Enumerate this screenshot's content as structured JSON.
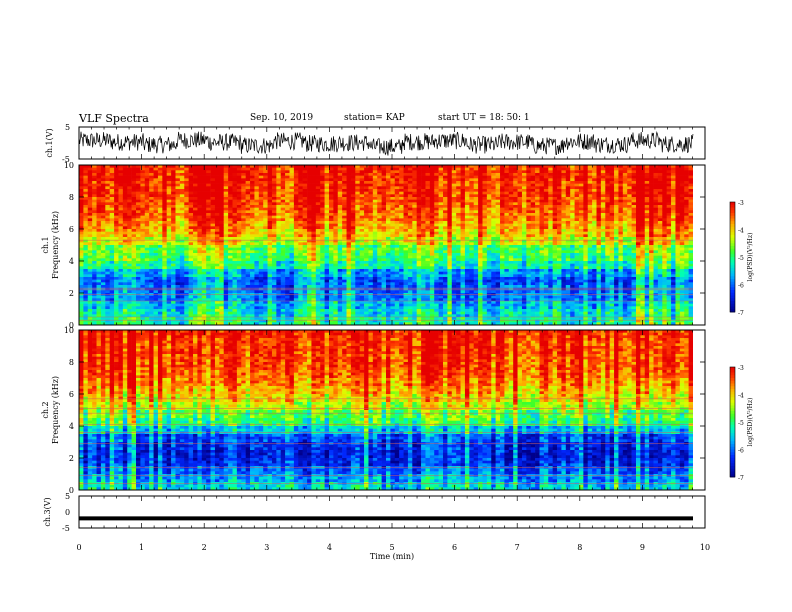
{
  "header": {
    "title": "VLF Spectra",
    "date": "Sep. 10, 2019",
    "station": "station= KAP",
    "start": "start UT =   18: 50: 1"
  },
  "chart_data": [
    {
      "type": "line",
      "panel": "ch1-waveform",
      "ylabel": "ch.1(V)",
      "ylim": [
        -5,
        5
      ],
      "yticks": [
        "5",
        "-5"
      ],
      "xlim": [
        0,
        10
      ],
      "series": [
        {
          "values": [
            0.8,
            0.3,
            -0.5,
            0.9,
            0.2,
            -0.8,
            0.6,
            -0.2,
            0.1,
            -1.2,
            0.4,
            0.7,
            -0.6,
            0.3,
            -0.9,
            0.5,
            -0.4,
            0.8,
            -0.3,
            0.2
          ]
        }
      ]
    },
    {
      "type": "heatmap",
      "panel": "ch1-spectrogram",
      "ylabel": "ch.1 Frequency (kHz)",
      "ylabel_line1": "ch.1",
      "ylabel_line2": "Frequency  (kHz)",
      "ylim": [
        0,
        10
      ],
      "yticks": [
        "0",
        "2",
        "4",
        "6",
        "8",
        "10"
      ],
      "xlim": [
        0,
        9.85
      ],
      "band_levels": [
        -5.2,
        -5.4,
        -5.6,
        -5.9,
        -6.0,
        -6.1,
        -5.8,
        -5.2,
        -4.9,
        -4.8,
        -4.3,
        -4.0,
        -3.8,
        -3.6,
        -3.5,
        -3.4,
        -3.3,
        -3.3,
        -3.2,
        -3.2
      ],
      "band_frequencies_khz": [
        0.25,
        0.75,
        1.25,
        1.75,
        2.25,
        2.75,
        3.25,
        3.75,
        4.25,
        4.75,
        5.25,
        5.75,
        6.25,
        6.75,
        7.25,
        7.75,
        8.25,
        8.75,
        9.25,
        9.75
      ],
      "colorbar": {
        "label": "log(PSD)(V²/Hz)",
        "range": [
          -7,
          -3
        ],
        "ticks": [
          "-3",
          "-4",
          "-5",
          "-6",
          "-7"
        ]
      }
    },
    {
      "type": "heatmap",
      "panel": "ch2-spectrogram",
      "ylabel": "ch.2 Frequency (kHz)",
      "ylabel_line1": "ch.2",
      "ylabel_line2": "Frequency  (kHz)",
      "ylim": [
        0,
        10
      ],
      "yticks": [
        "0",
        "2",
        "4",
        "6",
        "8",
        "10"
      ],
      "xlim": [
        0,
        9.85
      ],
      "band_levels": [
        -5.5,
        -5.8,
        -6.1,
        -6.4,
        -6.5,
        -6.4,
        -6.2,
        -5.6,
        -5.0,
        -4.8,
        -4.4,
        -4.1,
        -3.9,
        -3.7,
        -3.5,
        -3.4,
        -3.4,
        -3.3,
        -3.3,
        -3.2
      ],
      "band_frequencies_khz": [
        0.25,
        0.75,
        1.25,
        1.75,
        2.25,
        2.75,
        3.25,
        3.75,
        4.25,
        4.75,
        5.25,
        5.75,
        6.25,
        6.75,
        7.25,
        7.75,
        8.25,
        8.75,
        9.25,
        9.75
      ],
      "colorbar": {
        "label": "log(PSD)(V²/Hz)",
        "range": [
          -7,
          -3
        ],
        "ticks": [
          "-3",
          "-4",
          "-5",
          "-6",
          "-7"
        ]
      }
    },
    {
      "type": "line",
      "panel": "ch3-waveform",
      "ylabel": "ch.3(V)",
      "ylim": [
        -5,
        5
      ],
      "yticks": [
        "5",
        "0",
        "-5"
      ],
      "xlim": [
        0,
        10
      ],
      "series": [
        {
          "values": [
            -2,
            -2
          ]
        }
      ]
    }
  ],
  "xaxis": {
    "label": "Time  (min)",
    "ticks": [
      "0",
      "1",
      "2",
      "3",
      "4",
      "5",
      "6",
      "7",
      "8",
      "9",
      "10"
    ]
  },
  "colors": {
    "low": "#00008f",
    "mid_low": "#0070ff",
    "mid": "#00ff60",
    "mid_high": "#ffff00",
    "high": "#ff1800"
  }
}
